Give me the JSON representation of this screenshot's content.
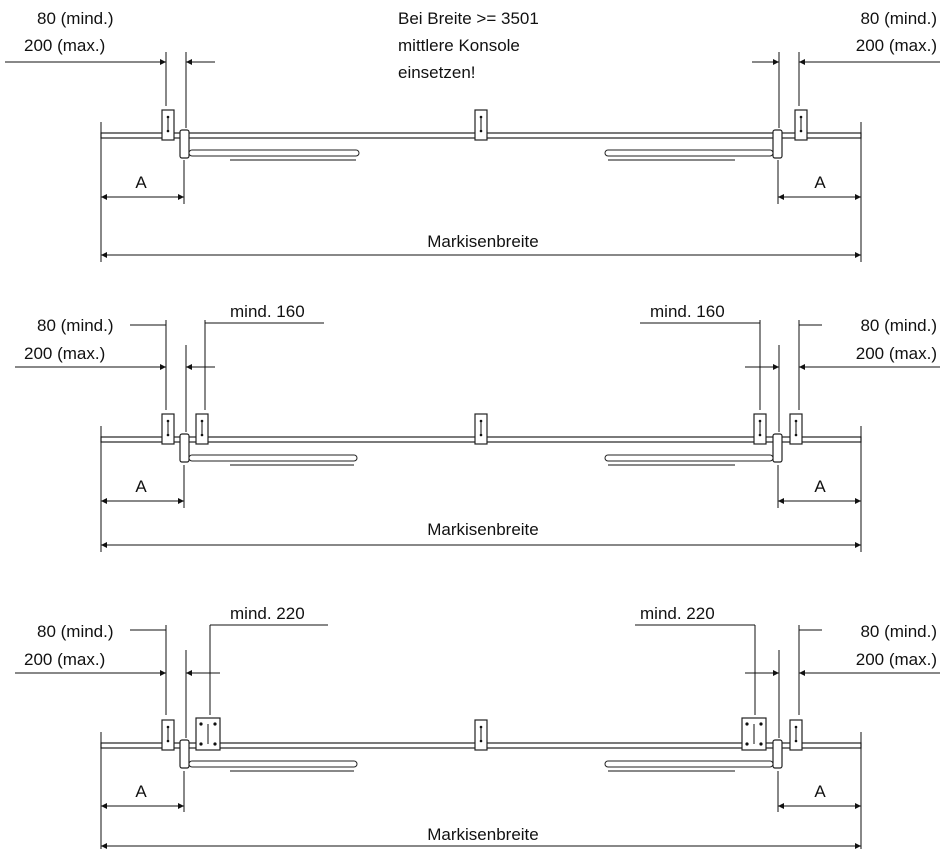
{
  "note": {
    "line1": "Bei Breite >= 3501",
    "line2": "mittlere Konsole",
    "line3": "einsetzen!"
  },
  "labels": {
    "min80": "80 (mind.)",
    "max200": "200 (max.)",
    "a": "A",
    "width": "Markisenbreite",
    "min160": "mind. 160",
    "min220": "mind. 220"
  }
}
